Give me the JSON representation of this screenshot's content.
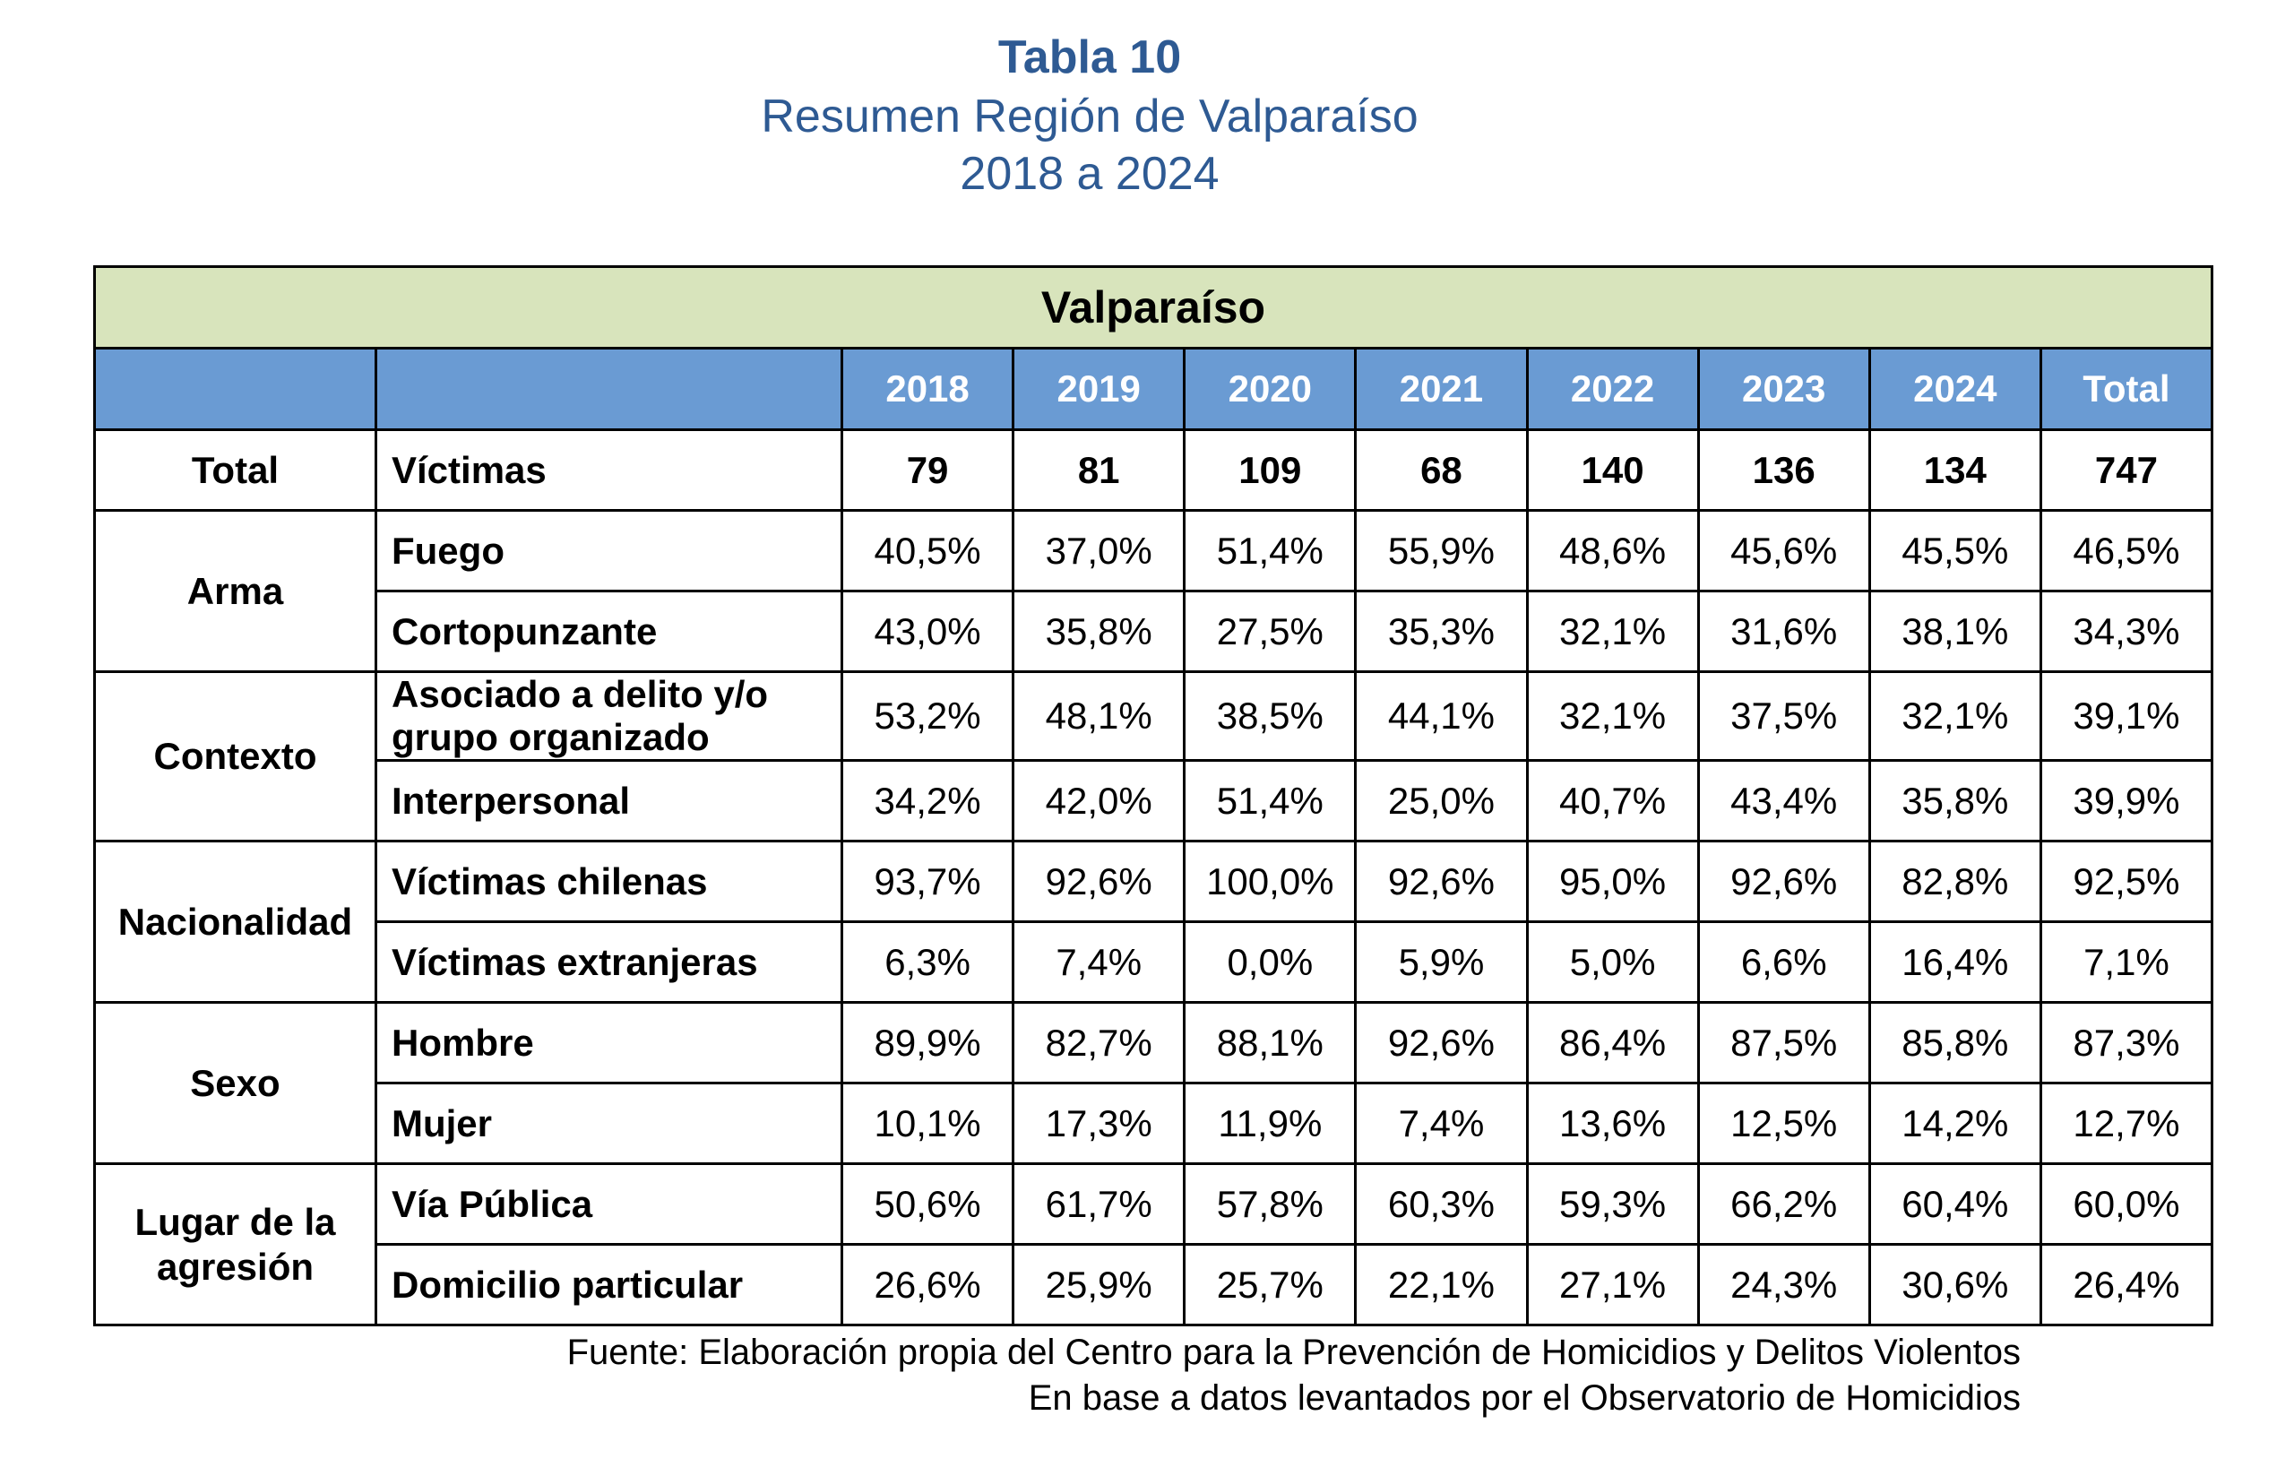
{
  "title": {
    "main": "Tabla 10",
    "line2": "Resumen Región de Valparaíso",
    "line3": "2018 a 2024"
  },
  "table": {
    "region": "Valparaíso",
    "headers": [
      "2018",
      "2019",
      "2020",
      "2021",
      "2022",
      "2023",
      "2024",
      "Total"
    ],
    "total": {
      "category": "Total",
      "label": "Víctimas",
      "values": [
        "79",
        "81",
        "109",
        "68",
        "140",
        "136",
        "134",
        "747"
      ]
    },
    "groups": [
      {
        "category": "Arma",
        "rows": [
          {
            "label": "Fuego",
            "values": [
              "40,5%",
              "37,0%",
              "51,4%",
              "55,9%",
              "48,6%",
              "45,6%",
              "45,5%",
              "46,5%"
            ]
          },
          {
            "label": "Cortopunzante",
            "values": [
              "43,0%",
              "35,8%",
              "27,5%",
              "35,3%",
              "32,1%",
              "31,6%",
              "38,1%",
              "34,3%"
            ]
          }
        ]
      },
      {
        "category": "Contexto",
        "rows": [
          {
            "label": "Asociado a delito y/o grupo organizado",
            "values": [
              "53,2%",
              "48,1%",
              "38,5%",
              "44,1%",
              "32,1%",
              "37,5%",
              "32,1%",
              "39,1%"
            ]
          },
          {
            "label": "Interpersonal",
            "values": [
              "34,2%",
              "42,0%",
              "51,4%",
              "25,0%",
              "40,7%",
              "43,4%",
              "35,8%",
              "39,9%"
            ]
          }
        ]
      },
      {
        "category": "Nacionalidad",
        "rows": [
          {
            "label": "Víctimas chilenas",
            "values": [
              "93,7%",
              "92,6%",
              "100,0%",
              "92,6%",
              "95,0%",
              "92,6%",
              "82,8%",
              "92,5%"
            ]
          },
          {
            "label": "Víctimas extranjeras",
            "values": [
              "6,3%",
              "7,4%",
              "0,0%",
              "5,9%",
              "5,0%",
              "6,6%",
              "16,4%",
              "7,1%"
            ]
          }
        ]
      },
      {
        "category": "Sexo",
        "rows": [
          {
            "label": "Hombre",
            "values": [
              "89,9%",
              "82,7%",
              "88,1%",
              "92,6%",
              "86,4%",
              "87,5%",
              "85,8%",
              "87,3%"
            ]
          },
          {
            "label": "Mujer",
            "values": [
              "10,1%",
              "17,3%",
              "11,9%",
              "7,4%",
              "13,6%",
              "12,5%",
              "14,2%",
              "12,7%"
            ]
          }
        ]
      },
      {
        "category": "Lugar de la agresión",
        "rows": [
          {
            "label": "Vía Pública",
            "values": [
              "50,6%",
              "61,7%",
              "57,8%",
              "60,3%",
              "59,3%",
              "66,2%",
              "60,4%",
              "60,0%"
            ]
          },
          {
            "label": "Domicilio particular",
            "values": [
              "26,6%",
              "25,9%",
              "25,7%",
              "22,1%",
              "27,1%",
              "24,3%",
              "30,6%",
              "26,4%"
            ]
          }
        ]
      }
    ]
  },
  "source": {
    "line1": "Fuente: Elaboración propia del Centro para la Prevención de Homicidios y Delitos Violentos",
    "line2": "En base a datos levantados por el Observatorio de Homicidios"
  },
  "colors": {
    "title": "#2e5a93",
    "region_bg": "#d8e4bc",
    "header_bg": "#6a9bd3"
  }
}
